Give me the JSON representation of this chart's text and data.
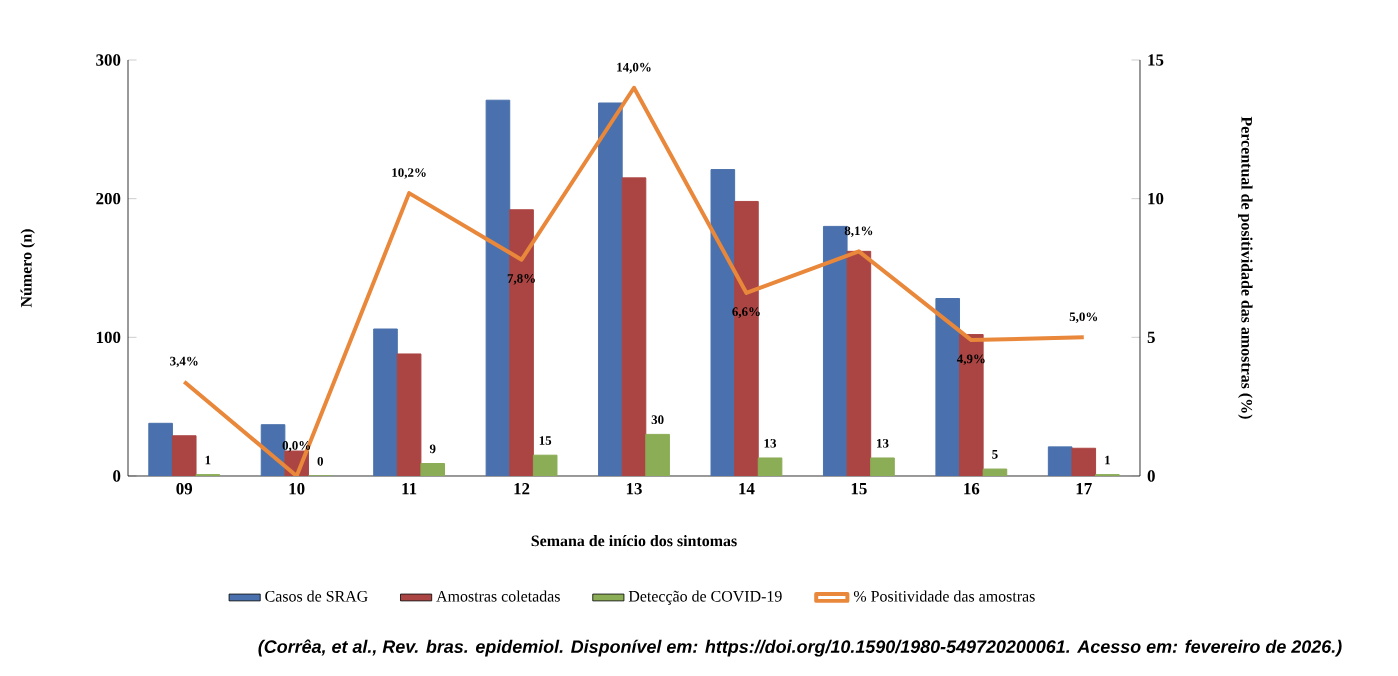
{
  "chart_data": {
    "type": "bar",
    "xlabel": "Semana de início dos sintomas",
    "ylabel": "Número (n)",
    "y2label": "Percentual de positividade das amostras (%)",
    "categories": [
      "09",
      "10",
      "11",
      "12",
      "13",
      "14",
      "15",
      "16",
      "17"
    ],
    "series": [
      {
        "name": "Casos de SRAG",
        "color": "#4a71ad",
        "values": [
          38,
          37,
          106,
          271,
          269,
          221,
          180,
          128,
          21
        ]
      },
      {
        "name": "Amostras coletadas",
        "color": "#ab4543",
        "values": [
          29,
          18,
          88,
          192,
          215,
          198,
          162,
          102,
          20
        ]
      },
      {
        "name": "Detecção de COVID-19",
        "color": "#8bad55",
        "values": [
          1,
          0,
          9,
          15,
          30,
          13,
          13,
          5,
          1
        ],
        "value_labels": [
          "1",
          "0",
          "9",
          "15",
          "30",
          "13",
          "13",
          "5",
          "1"
        ]
      },
      {
        "name": "% Positividade das amostras",
        "type": "line",
        "axis": "y2",
        "color": "#e9873a",
        "values": [
          3.4,
          0.0,
          10.2,
          7.8,
          14.0,
          6.6,
          8.1,
          4.9,
          5.0
        ],
        "value_labels": [
          "3,4%",
          "0,0%",
          "10,2%",
          "7,8%",
          "14,0%",
          "6,6%",
          "8,1%",
          "4,9%",
          "5,0%"
        ]
      }
    ],
    "ylim": [
      0,
      300
    ],
    "yticks": [
      0,
      100,
      200,
      300
    ],
    "y2lim": [
      0,
      15
    ],
    "y2ticks": [
      0,
      5,
      10,
      15
    ],
    "grid": false,
    "legend": "bottom",
    "marker": "none",
    "line_style": "solid",
    "annotations": [
      "(Corrêa, et al., Rev. bras. epidemiol. Disponível em: https://doi.org/10.1590/1980-549720200061. Acesso em: fevereiro de 2026.)"
    ]
  }
}
